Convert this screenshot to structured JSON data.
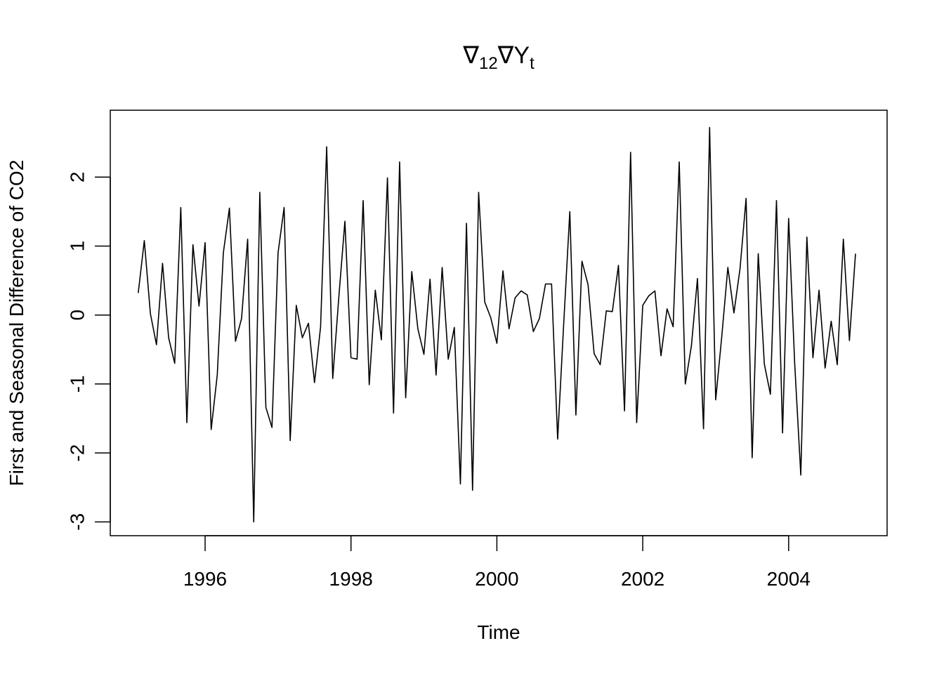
{
  "chart_data": {
    "type": "line",
    "title": {
      "main": "∇",
      "sub1": "12",
      "mid": "∇Y",
      "sub2": "t"
    },
    "xlabel": "Time",
    "ylabel": "First and Seasonal Difference of CO2",
    "xlim": [
      1994.7,
      2005.35
    ],
    "ylim": [
      -3.2,
      2.97
    ],
    "x_ticks": [
      1996,
      1998,
      2000,
      2002,
      2004
    ],
    "x_tick_labels": [
      "1996",
      "1998",
      "2000",
      "2002",
      "2004"
    ],
    "y_ticks": [
      -3,
      -2,
      -1,
      0,
      1,
      2
    ],
    "y_tick_labels": [
      "-3",
      "-2",
      "-1",
      "0",
      "1",
      "2"
    ],
    "grid": false,
    "line_color": "#000000",
    "series": [
      {
        "start_year": 1995,
        "start_month": 2,
        "frequency": 12,
        "values": [
          0.32,
          1.08,
          0.02,
          -0.43,
          0.75,
          -0.33,
          -0.7,
          1.56,
          -1.56,
          1.02,
          0.13,
          1.05,
          -1.66,
          -0.87,
          0.9,
          1.55,
          -0.38,
          -0.05,
          1.1,
          -3.0,
          1.78,
          -1.34,
          -1.63,
          0.9,
          1.56,
          -1.82,
          0.14,
          -0.33,
          -0.12,
          -0.98,
          -0.17,
          2.44,
          -0.92,
          0.26,
          1.36,
          -0.62,
          -0.64,
          1.66,
          -1.01,
          0.36,
          -0.36,
          1.99,
          -1.42,
          2.22,
          -1.2,
          0.63,
          -0.2,
          -0.57,
          0.52,
          -0.87,
          0.69,
          -0.64,
          -0.18,
          -2.45,
          1.33,
          -2.54,
          1.78,
          0.19,
          -0.04,
          -0.41,
          0.64,
          -0.2,
          0.25,
          0.35,
          0.29,
          -0.24,
          -0.05,
          0.45,
          0.45,
          -1.8,
          -0.12,
          1.5,
          -1.45,
          0.78,
          0.44,
          -0.56,
          -0.72,
          0.06,
          0.05,
          0.72,
          -1.39,
          2.36,
          -1.56,
          0.14,
          0.28,
          0.35,
          -0.59,
          0.09,
          -0.17,
          2.22,
          -1.0,
          -0.45,
          0.53,
          -1.65,
          2.72,
          -1.23,
          -0.31,
          0.69,
          0.03,
          0.67,
          1.69,
          -2.07,
          0.89,
          -0.71,
          -1.15,
          1.66,
          -1.71,
          1.4,
          -0.71,
          -2.32,
          1.13,
          -0.62,
          0.36,
          -0.77,
          -0.09,
          -0.72,
          1.1,
          -0.37,
          0.89
        ]
      }
    ]
  }
}
